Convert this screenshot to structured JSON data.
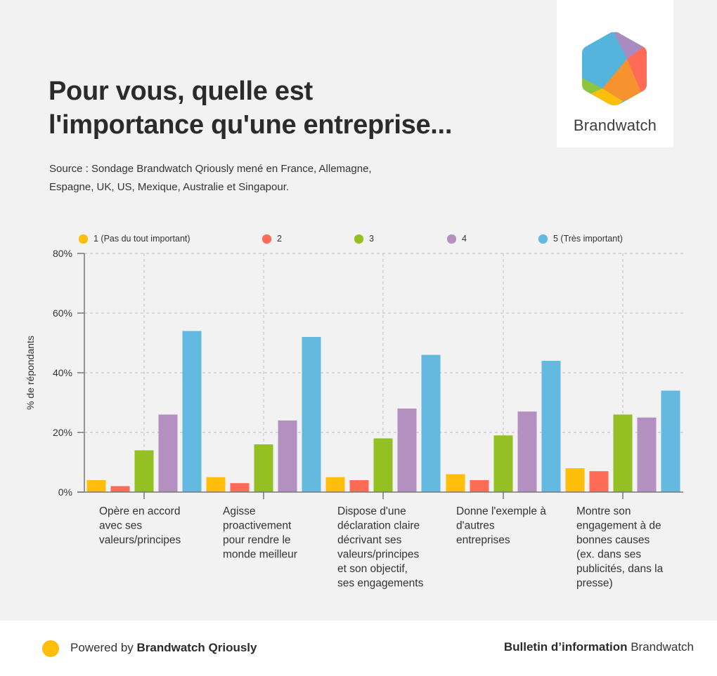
{
  "header": {
    "title_lines": [
      "Pour vous, quelle est",
      "l'importance qu'une entreprise..."
    ],
    "source_lines": [
      "Source : Sondage Brandwatch Qriously mené en France, Allemagne,",
      "Espagne, UK, US, Mexique, Australie et Singapour."
    ]
  },
  "logo": {
    "text": "Brandwatch",
    "colors": {
      "blue": "#55b4dc",
      "purple": "#a98bbf",
      "red": "#ff6b57",
      "orange": "#f7932f",
      "yellow": "#ffbe0b",
      "green": "#8cc63f"
    }
  },
  "chart_data": {
    "type": "bar",
    "ylabel": "% de répondants",
    "xlabel": "",
    "ylim": [
      0,
      80
    ],
    "yticks": [
      0,
      20,
      40,
      60,
      80
    ],
    "ytick_labels": [
      "0%",
      "20%",
      "40%",
      "60%",
      "80%"
    ],
    "grid": true,
    "legend_position": "top",
    "categories": [
      [
        "Opère en accord",
        "avec ses",
        "valeurs/principes"
      ],
      [
        "Agisse",
        "proactivement",
        "pour rendre le",
        "monde meilleur"
      ],
      [
        "Dispose d'une",
        "déclaration claire",
        "décrivant ses",
        "valeurs/principes",
        "et son objectif,",
        "ses engagements"
      ],
      [
        "Donne l'exemple à",
        "d'autres",
        "entreprises"
      ],
      [
        "Montre son",
        "engagement à de",
        "bonnes causes",
        "(ex. dans ses",
        "publicités, dans la",
        "presse)"
      ]
    ],
    "series": [
      {
        "name": "1 (Pas du tout important)",
        "color": "#ffbe0b",
        "values": [
          4,
          5,
          5,
          6,
          8
        ]
      },
      {
        "name": "2",
        "color": "#ff6b57",
        "values": [
          2,
          3,
          4,
          4,
          7
        ]
      },
      {
        "name": "3",
        "color": "#94c023",
        "values": [
          14,
          16,
          18,
          19,
          26
        ]
      },
      {
        "name": "4",
        "color": "#b490c1",
        "values": [
          26,
          24,
          28,
          27,
          25
        ]
      },
      {
        "name": "5 (Très important)",
        "color": "#64b9e1",
        "values": [
          54,
          52,
          46,
          44,
          34
        ]
      }
    ]
  },
  "footer": {
    "powered_prefix": "Powered by ",
    "powered_brand": "Brandwatch Qriously",
    "bulletin_bold": "Bulletin d’information",
    "bulletin_rest": " Brandwatch"
  }
}
